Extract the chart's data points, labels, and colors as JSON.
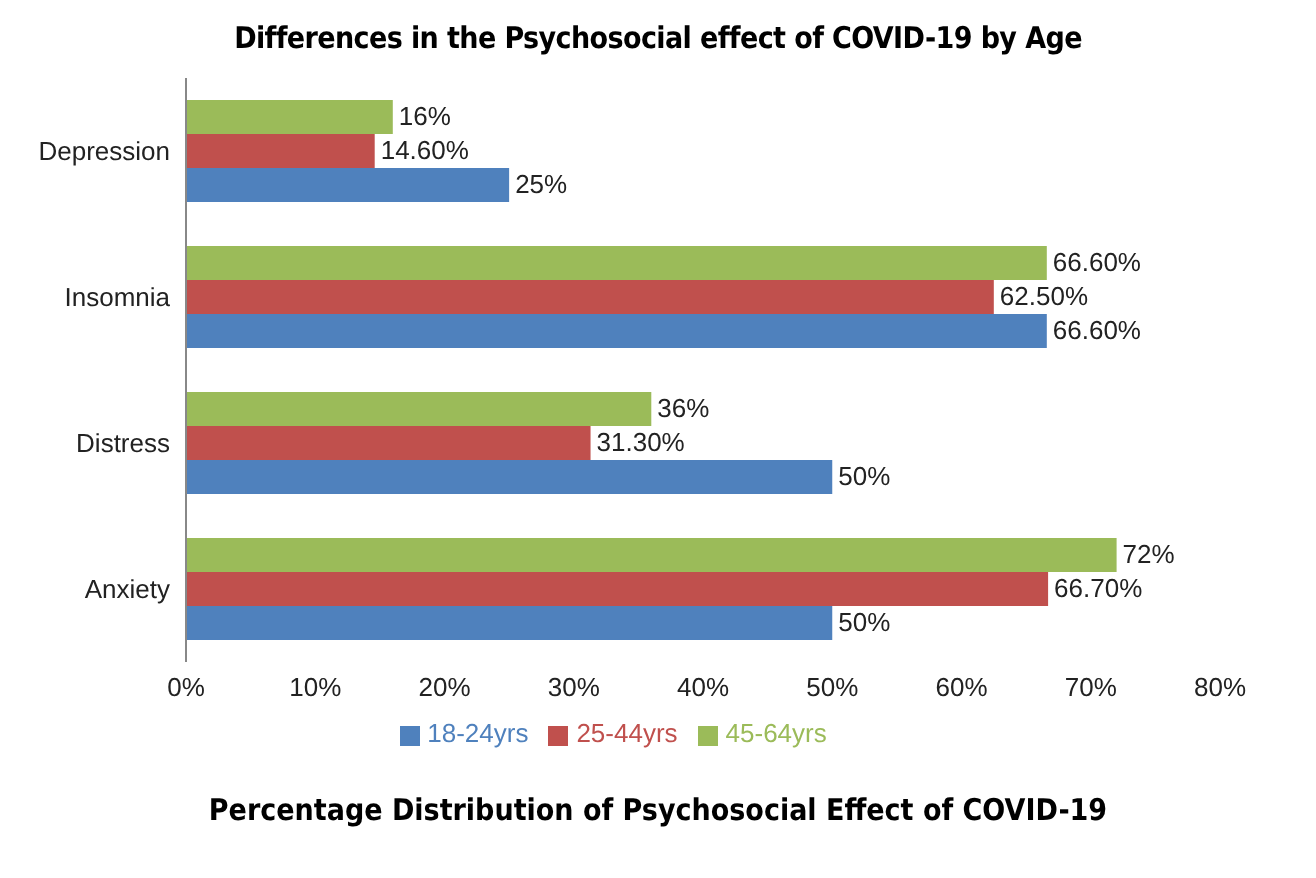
{
  "chart_data": {
    "type": "bar",
    "orientation": "horizontal",
    "title": "Differences in the Psychosocial effect of COVID-19 by Age",
    "categories": [
      "Depression",
      "Insomnia",
      "Distress",
      "Anxiety"
    ],
    "series": [
      {
        "name": "45-64yrs",
        "color": "#9bbb59",
        "values": [
          16,
          66.6,
          36,
          72
        ],
        "value_labels": [
          "16%",
          "66.60%",
          "36%",
          "72%"
        ]
      },
      {
        "name": "25-44yrs",
        "color": "#c0504d",
        "values": [
          14.6,
          62.5,
          31.3,
          66.7
        ],
        "value_labels": [
          "14.60%",
          "62.50%",
          "31.30%",
          "66.70%"
        ]
      },
      {
        "name": "18-24yrs",
        "color": "#4f81bd",
        "values": [
          25,
          66.6,
          50,
          50
        ],
        "value_labels": [
          "25%",
          "66.60%",
          "50%",
          "50%"
        ]
      }
    ],
    "xlim": [
      0,
      80
    ],
    "xticks": [
      {
        "value": 0,
        "label": "0%"
      },
      {
        "value": 10,
        "label": "10%"
      },
      {
        "value": 20,
        "label": "20%"
      },
      {
        "value": 30,
        "label": "30%"
      },
      {
        "value": 40,
        "label": "40%"
      },
      {
        "value": 50,
        "label": "50%"
      },
      {
        "value": 60,
        "label": "60%"
      },
      {
        "value": 70,
        "label": "70%"
      },
      {
        "value": 80,
        "label": "80%"
      }
    ],
    "grid": false,
    "legend": "bottom",
    "annotations": [
      "Percentage Distribution of Psychosocial Effect of COVID-19"
    ]
  }
}
